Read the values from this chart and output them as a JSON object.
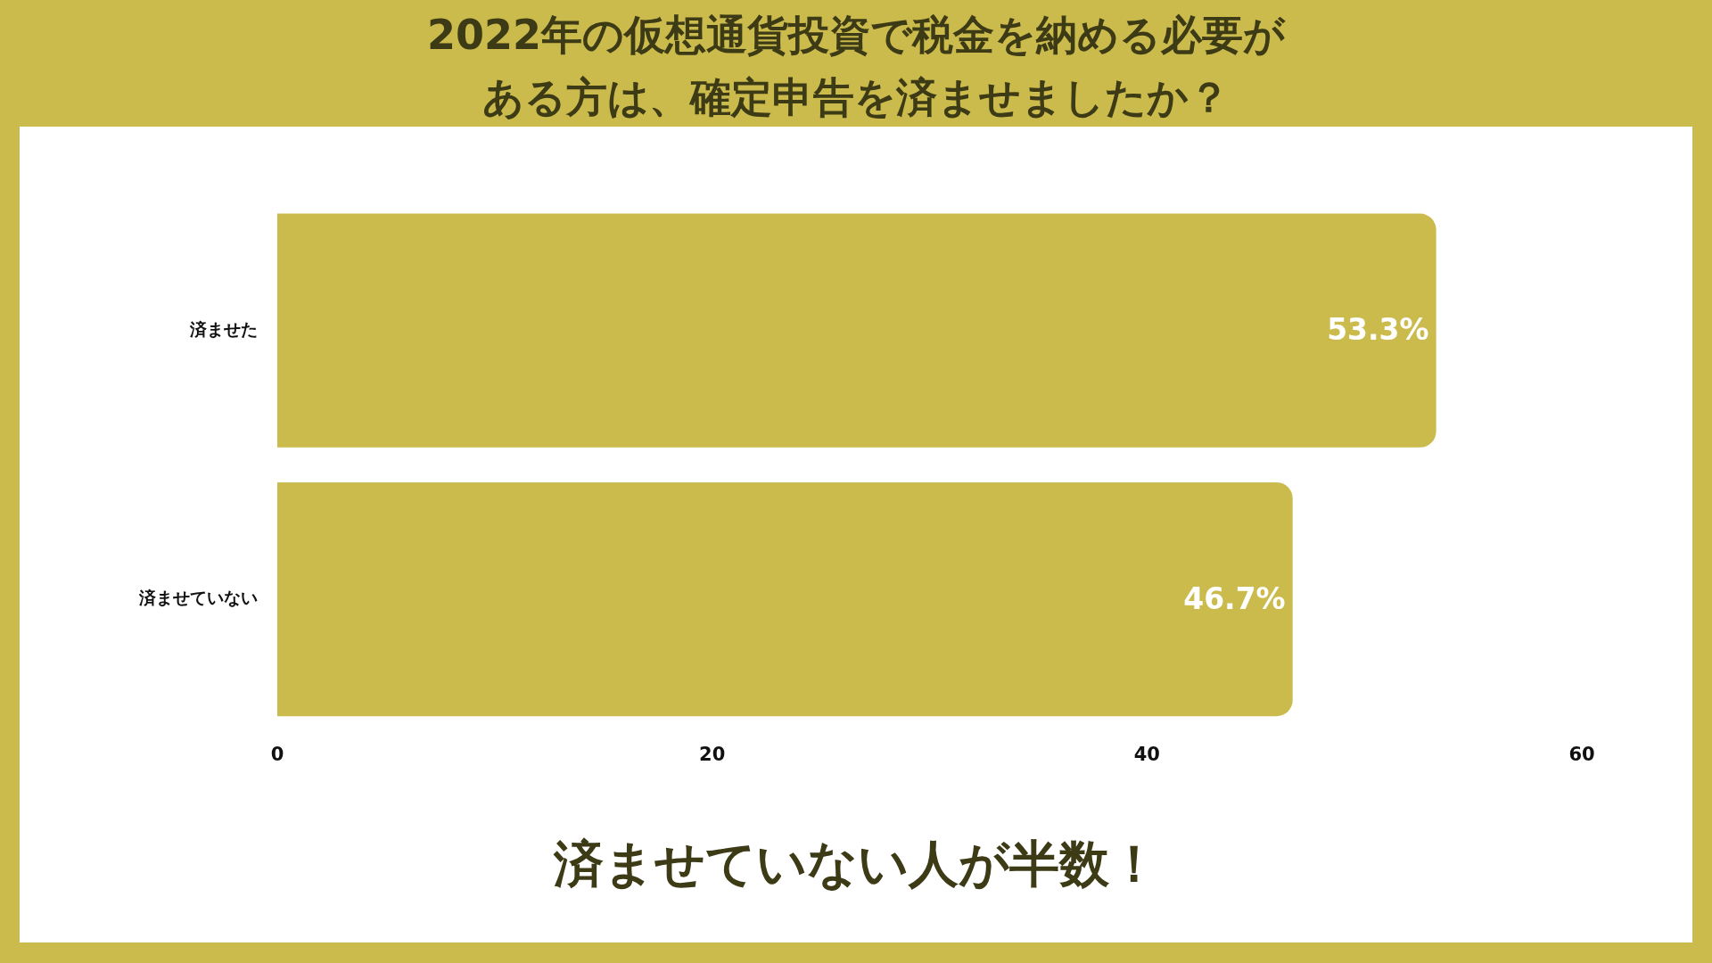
{
  "chart_data": {
    "type": "bar",
    "orientation": "horizontal",
    "title": "2022年の仮想通貨投資で税金を納める必要がある方は、確定申告を済ませましたか？",
    "categories": [
      "済ませた",
      "済ませていない"
    ],
    "values": [
      53.3,
      46.7
    ],
    "value_labels": [
      "53.3%",
      "46.7%"
    ],
    "color": "#cbbb4d",
    "xlim": [
      0,
      60
    ],
    "xticks": [
      0,
      20,
      40,
      60
    ],
    "grid": false,
    "legend": false,
    "annotations": [
      "済ませていない人が半数！"
    ]
  }
}
